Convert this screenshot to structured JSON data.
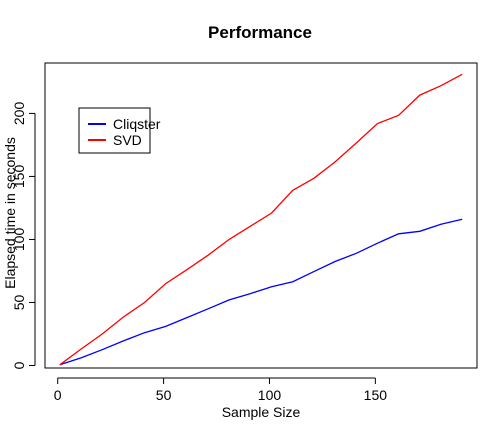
{
  "chart_data": {
    "type": "line",
    "title": "Performance",
    "xlabel": "Sample Size",
    "ylabel": "Elapsed time in seconds",
    "xlim": [
      -6,
      198
    ],
    "ylim": [
      -2,
      240
    ],
    "x_ticks": [
      0,
      50,
      100,
      150
    ],
    "y_ticks": [
      0,
      50,
      100,
      150,
      200
    ],
    "grid": false,
    "legend_position": "top-left",
    "series": [
      {
        "name": "Cliqster",
        "color": "#0000ff",
        "x": [
          1,
          11,
          21,
          31,
          41,
          51,
          61,
          71,
          81,
          91,
          101,
          111,
          121,
          131,
          141,
          151,
          161,
          171,
          181,
          191
        ],
        "values": [
          0.5,
          6,
          12.5,
          19.5,
          26,
          31,
          38,
          45,
          52,
          57,
          62.5,
          66.5,
          74.5,
          82.5,
          89,
          97,
          104.5,
          106.5,
          112,
          116
        ]
      },
      {
        "name": "SVD",
        "color": "#ff0000",
        "x": [
          1,
          11,
          21,
          31,
          41,
          51,
          61,
          71,
          81,
          91,
          101,
          111,
          121,
          131,
          141,
          151,
          161,
          171,
          181,
          191
        ],
        "values": [
          0.5,
          13,
          25,
          38.5,
          50,
          65,
          76,
          87.5,
          100,
          110.5,
          121,
          139,
          148.5,
          161.5,
          176.5,
          192,
          198.5,
          214.5,
          222,
          231
        ]
      }
    ]
  }
}
